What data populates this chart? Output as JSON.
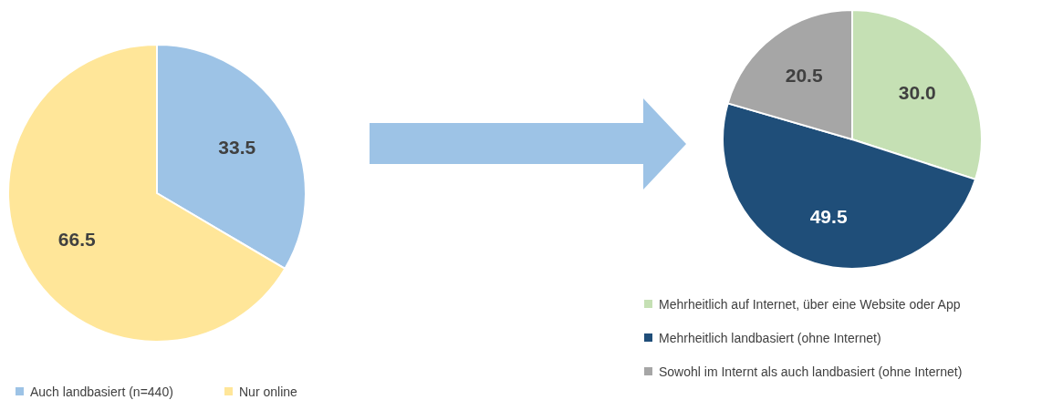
{
  "chart_data": [
    {
      "type": "pie",
      "categories": [
        "Auch landbasiert (n=440)",
        "Nur online"
      ],
      "values": [
        33.5,
        66.5
      ],
      "colors": [
        "#9dc3e6",
        "#ffe699"
      ],
      "value_labels": [
        "33.5",
        "66.5"
      ],
      "legend": "bottom"
    },
    {
      "type": "pie",
      "categories": [
        "Mehrheitlich auf Internet, über eine Website oder App",
        "Mehrheitlich landbasiert (ohne Internet)",
        "Sowohl im Internt als auch landbasiert (ohne Internet)"
      ],
      "values": [
        30.0,
        49.5,
        20.5
      ],
      "colors": [
        "#c5e0b4",
        "#1f4e79",
        "#a6a6a6"
      ],
      "value_labels": [
        "30.0",
        "49.5",
        "20.5"
      ],
      "legend": "bottom"
    }
  ]
}
